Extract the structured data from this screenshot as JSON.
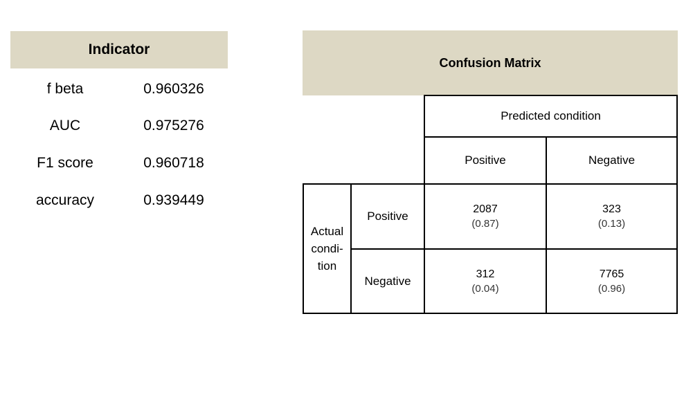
{
  "indicator": {
    "title": "Indicator",
    "rows": [
      {
        "name": "f beta",
        "value": "0.960326"
      },
      {
        "name": "AUC",
        "value": "0.975276"
      },
      {
        "name": "F1 score",
        "value": "0.960718"
      },
      {
        "name": "accuracy",
        "value": "0.939449"
      }
    ]
  },
  "confusion_matrix": {
    "title": "Confusion Matrix",
    "predicted_label": "Predicted condition",
    "predicted_positive": "Positive",
    "predicted_negative": "Negative",
    "actual_label_lines": [
      "Actual",
      "condi-",
      "tion"
    ],
    "actual_positive": "Positive",
    "actual_negative": "Negative",
    "tp": {
      "count": "2087",
      "ratio": "(0.87)"
    },
    "fn": {
      "count": "323",
      "ratio": "(0.13)"
    },
    "fp": {
      "count": "312",
      "ratio": "(0.04)"
    },
    "tn": {
      "count": "7765",
      "ratio": "(0.96)"
    }
  }
}
